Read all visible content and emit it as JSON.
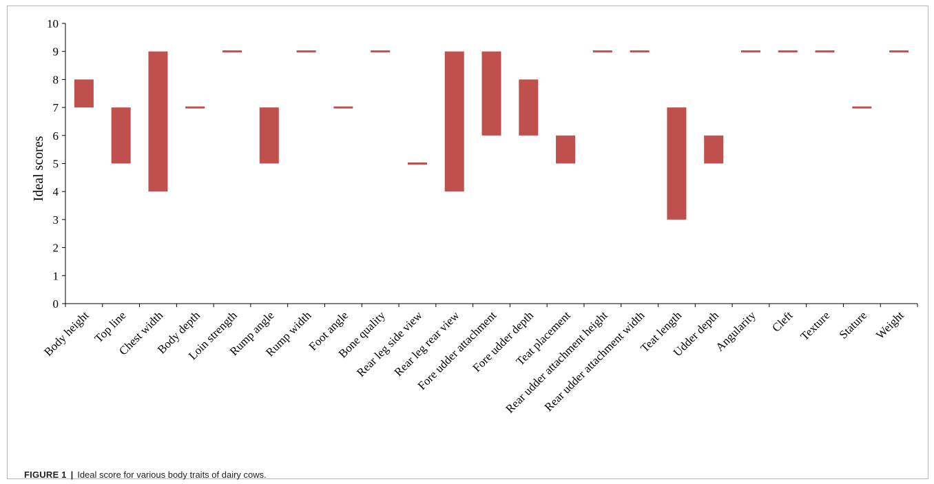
{
  "figure": {
    "label": "FIGURE 1",
    "separator": "|",
    "caption": "Ideal score for various body traits of dairy cows."
  },
  "chart_data": {
    "type": "bar",
    "subtype": "floating-range",
    "title": "",
    "xlabel": "",
    "ylabel": "Ideal scores",
    "ylim": [
      0,
      10
    ],
    "yticks": [
      0,
      1,
      2,
      3,
      4,
      5,
      6,
      7,
      8,
      9,
      10
    ],
    "grid": false,
    "legend": "none",
    "bar_color": "#c0504d",
    "categories": [
      "Body height",
      "Top line",
      "Chest width",
      "Body depth",
      "Loin strength",
      "Rump angle",
      "Rump width",
      "Foot angle",
      "Bone quality",
      "Rear leg side view",
      "Rear leg rear view",
      "Fore udder attachment",
      "Fore udder depth",
      "Teat placement",
      "Rear udder attachment height",
      "Rear udder attachment width",
      "Teat length",
      "Udder depth",
      "Angularity",
      "Cleft",
      "Texture",
      "Stature",
      "Weight"
    ],
    "ranges": [
      [
        7,
        8
      ],
      [
        5,
        7
      ],
      [
        4,
        9
      ],
      [
        7,
        7
      ],
      [
        9,
        9
      ],
      [
        5,
        7
      ],
      [
        9,
        9
      ],
      [
        7,
        7
      ],
      [
        9,
        9
      ],
      [
        5,
        5
      ],
      [
        4,
        9
      ],
      [
        6,
        9
      ],
      [
        6,
        8
      ],
      [
        5,
        6
      ],
      [
        9,
        9
      ],
      [
        9,
        9
      ],
      [
        3,
        7
      ],
      [
        5,
        6
      ],
      [
        9,
        9
      ],
      [
        9,
        9
      ],
      [
        9,
        9
      ],
      [
        7,
        7
      ],
      [
        9,
        9
      ]
    ]
  }
}
